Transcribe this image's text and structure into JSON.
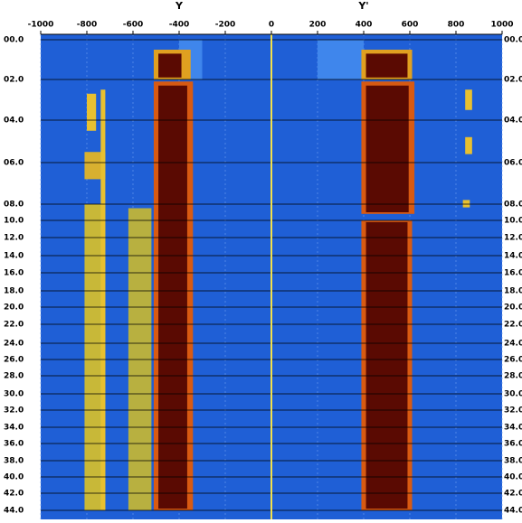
{
  "chart_data": {
    "type": "heatmap",
    "x_labels": [
      "Y",
      "Y'"
    ],
    "x_label_positions": [
      -400,
      400
    ],
    "xlim": [
      -1000,
      1000
    ],
    "xticks": [
      -1000,
      -800,
      -600,
      -400,
      -200,
      0,
      200,
      400,
      600,
      800,
      1000
    ],
    "ylim": [
      0,
      44
    ],
    "yticks": [
      {
        "value": 0,
        "label": "00.0"
      },
      {
        "value": 2,
        "label": "02.0"
      },
      {
        "value": 4,
        "label": "04.0"
      },
      {
        "value": 6,
        "label": "06.0"
      },
      {
        "value": 8,
        "label": "08.0"
      },
      {
        "value": 10,
        "label": "10.0"
      },
      {
        "value": 12,
        "label": "12.0"
      },
      {
        "value": 14,
        "label": "14.0"
      },
      {
        "value": 16,
        "label": "16.0"
      },
      {
        "value": 18,
        "label": "18.0"
      },
      {
        "value": 20,
        "label": "20.0"
      },
      {
        "value": 22,
        "label": "22.0"
      },
      {
        "value": 24,
        "label": "24.0"
      },
      {
        "value": 26,
        "label": "26.0"
      },
      {
        "value": 28,
        "label": "28.0"
      },
      {
        "value": 30,
        "label": "30.0"
      },
      {
        "value": 32,
        "label": "32.0"
      },
      {
        "value": 34,
        "label": "34.0"
      },
      {
        "value": 36,
        "label": "36.0"
      },
      {
        "value": 38,
        "label": "38.0"
      },
      {
        "value": 40,
        "label": "40.0"
      },
      {
        "value": 42,
        "label": "42.0"
      },
      {
        "value": 44,
        "label": "44.0"
      }
    ],
    "background": "#1f5fd6",
    "zero_line_color": "#f2e04a",
    "regions": [
      {
        "x": [
          -400,
          -300
        ],
        "y": [
          0,
          2
        ],
        "color": "#3f86ec"
      },
      {
        "x": [
          200,
          400
        ],
        "y": [
          0,
          2
        ],
        "color": "#3f86ec"
      },
      {
        "x": [
          -510,
          -350
        ],
        "y": [
          0.5,
          2
        ],
        "color": "#e0a020"
      },
      {
        "x": [
          -490,
          -390
        ],
        "y": [
          0.7,
          1.9
        ],
        "color": "#5a0a02"
      },
      {
        "x": [
          -510,
          -340
        ],
        "y": [
          2.1,
          44
        ],
        "color": "#d85a12"
      },
      {
        "x": [
          -490,
          -365
        ],
        "y": [
          2.3,
          43.8
        ],
        "color": "#5a0a02"
      },
      {
        "x": [
          390,
          610
        ],
        "y": [
          0.5,
          2
        ],
        "color": "#e0a020"
      },
      {
        "x": [
          410,
          590
        ],
        "y": [
          0.7,
          1.9
        ],
        "color": "#5a0a02"
      },
      {
        "x": [
          390,
          620
        ],
        "y": [
          2.1,
          9.2
        ],
        "color": "#d85a12"
      },
      {
        "x": [
          410,
          595
        ],
        "y": [
          2.3,
          9
        ],
        "color": "#5a0a02"
      },
      {
        "x": [
          390,
          610
        ],
        "y": [
          10,
          44
        ],
        "color": "#d85a12"
      },
      {
        "x": [
          410,
          590
        ],
        "y": [
          10.2,
          43.8
        ],
        "color": "#5a0a02"
      },
      {
        "x": [
          -800,
          -760
        ],
        "y": [
          2.7,
          4.5
        ],
        "color": "#e8c030"
      },
      {
        "x": [
          -810,
          -720
        ],
        "y": [
          5.5,
          6.8
        ],
        "color": "#d8b030"
      },
      {
        "x": [
          -810,
          -720
        ],
        "y": [
          8,
          44
        ],
        "color": "#c8b838"
      },
      {
        "x": [
          -620,
          -520
        ],
        "y": [
          8.5,
          44
        ],
        "color": "#b8b040"
      },
      {
        "x": [
          -740,
          -720
        ],
        "y": [
          2.5,
          44
        ],
        "color": "#e8c030"
      },
      {
        "x": [
          840,
          870
        ],
        "y": [
          2.5,
          3.5
        ],
        "color": "#e8c030"
      },
      {
        "x": [
          840,
          870
        ],
        "y": [
          4.8,
          5.6
        ],
        "color": "#e8c030"
      },
      {
        "x": [
          830,
          860
        ],
        "y": [
          7.8,
          8.4
        ],
        "color": "#e8c030"
      }
    ]
  }
}
